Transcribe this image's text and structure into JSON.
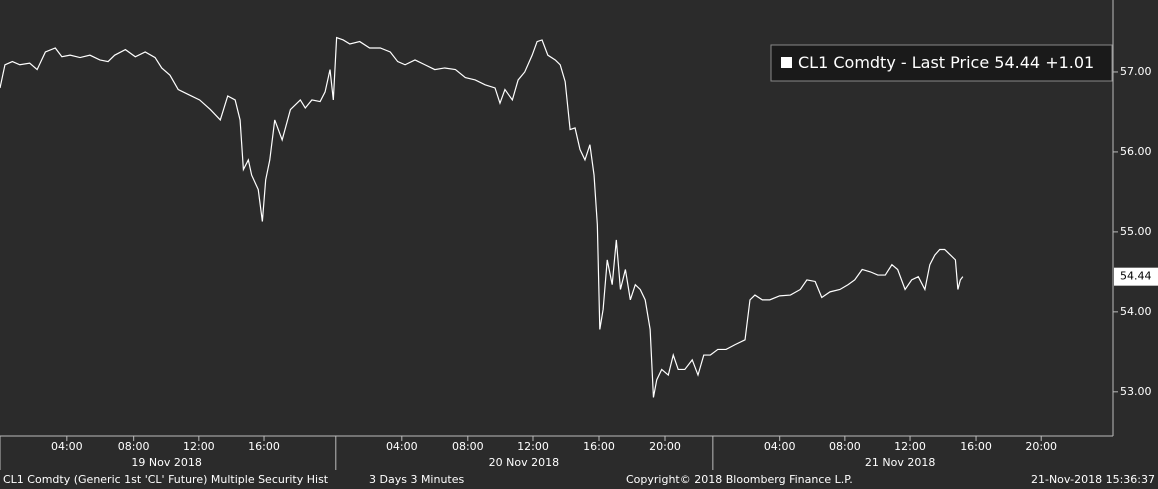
{
  "chart_data": {
    "type": "line",
    "footer_left": "CL1 Comdty (Generic 1st 'CL' Future) Multiple Security Hist",
    "footer_period": "3 Days 3 Minutes",
    "copyright": "Copyright© 2018 Bloomberg Finance L.P.",
    "timestamp": "21-Nov-2018 15:36:37",
    "change": {
      "value": 1.01,
      "label": "+1.01"
    },
    "xlim": [
      0,
      1349
    ],
    "xticks": [
      {
        "value": 81,
        "label": "04:00"
      },
      {
        "value": 162,
        "label": "08:00"
      },
      {
        "value": 241,
        "label": "12:00"
      },
      {
        "value": 320,
        "label": "16:00"
      },
      {
        "value": 487,
        "label": "04:00"
      },
      {
        "value": 567,
        "label": "08:00"
      },
      {
        "value": 646,
        "label": "12:00"
      },
      {
        "value": 726,
        "label": "16:00"
      },
      {
        "value": 806,
        "label": "20:00"
      },
      {
        "value": 945,
        "label": "04:00"
      },
      {
        "value": 1024,
        "label": "08:00"
      },
      {
        "value": 1103,
        "label": "12:00"
      },
      {
        "value": 1183,
        "label": "16:00"
      },
      {
        "value": 1262,
        "label": "20:00"
      }
    ],
    "day_labels": [
      {
        "value": 202,
        "label": "19 Nov 2018"
      },
      {
        "value": 635,
        "label": "20 Nov 2018"
      },
      {
        "value": 1091,
        "label": "21 Nov 2018"
      }
    ],
    "day_boundaries": [
      407,
      864
    ],
    "ylim": [
      52.46,
      57.9
    ],
    "yticks": [
      {
        "value": 53,
        "label": "53.00"
      },
      {
        "value": 54,
        "label": "54.00"
      },
      {
        "value": 55,
        "label": "55.00"
      },
      {
        "value": 56,
        "label": "56.00"
      },
      {
        "value": 57,
        "label": "57.00"
      }
    ],
    "x": [
      0,
      6,
      15,
      24,
      36,
      45,
      55,
      67,
      75,
      85,
      97,
      109,
      121,
      131,
      139,
      152,
      164,
      176,
      188,
      196,
      206,
      216,
      230,
      242,
      255,
      267,
      276,
      285,
      291,
      295,
      301,
      305,
      313,
      318,
      322,
      327,
      333,
      342,
      352,
      364,
      370,
      378,
      388,
      394,
      400,
      404,
      408,
      416,
      424,
      436,
      448,
      461,
      473,
      482,
      491,
      503,
      515,
      527,
      539,
      552,
      564,
      576,
      588,
      600,
      606,
      612,
      621,
      628,
      636,
      645,
      651,
      657,
      664,
      673,
      679,
      685,
      691,
      697,
      703,
      709,
      715,
      720,
      724,
      727,
      731,
      736,
      742,
      747,
      752,
      758,
      764,
      770,
      776,
      782,
      788,
      792,
      796,
      802,
      810,
      816,
      822,
      830,
      839,
      846,
      853,
      861,
      870,
      880,
      891,
      903,
      909,
      915,
      924,
      933,
      945,
      958,
      970,
      978,
      988,
      996,
      1006,
      1018,
      1028,
      1036,
      1045,
      1055,
      1064,
      1073,
      1081,
      1088,
      1097,
      1105,
      1113,
      1121,
      1127,
      1133,
      1139,
      1145,
      1152,
      1158,
      1161,
      1164,
      1167
    ],
    "series": [
      {
        "name": "CL1 Comdty - Last Price",
        "color": "#ffffff",
        "values": [
          56.8,
          57.09,
          57.13,
          57.09,
          57.11,
          57.03,
          57.25,
          57.3,
          57.19,
          57.21,
          57.18,
          57.21,
          57.15,
          57.13,
          57.21,
          57.28,
          57.19,
          57.25,
          57.18,
          57.05,
          56.96,
          56.78,
          56.71,
          56.65,
          56.53,
          56.4,
          56.7,
          56.65,
          56.4,
          55.78,
          55.9,
          55.71,
          55.53,
          55.13,
          55.65,
          55.9,
          56.4,
          56.15,
          56.53,
          56.65,
          56.55,
          56.65,
          56.63,
          56.75,
          57.03,
          56.65,
          57.43,
          57.4,
          57.35,
          57.38,
          57.3,
          57.3,
          57.25,
          57.13,
          57.09,
          57.15,
          57.09,
          57.03,
          57.05,
          57.03,
          56.93,
          56.9,
          56.84,
          56.8,
          56.61,
          56.78,
          56.65,
          56.9,
          57.0,
          57.21,
          57.38,
          57.4,
          57.21,
          57.15,
          57.09,
          56.88,
          56.28,
          56.3,
          56.03,
          55.9,
          56.09,
          55.71,
          55.09,
          53.78,
          54.03,
          54.65,
          54.34,
          54.9,
          54.28,
          54.53,
          54.15,
          54.34,
          54.28,
          54.15,
          53.78,
          52.93,
          53.15,
          53.28,
          53.21,
          53.46,
          53.28,
          53.28,
          53.4,
          53.21,
          53.46,
          53.46,
          53.53,
          53.53,
          53.59,
          53.65,
          54.15,
          54.21,
          54.15,
          54.15,
          54.2,
          54.21,
          54.28,
          54.4,
          54.38,
          54.18,
          54.25,
          54.28,
          54.34,
          54.4,
          54.53,
          54.5,
          54.46,
          54.46,
          54.59,
          54.53,
          54.28,
          54.4,
          54.44,
          54.28,
          54.59,
          54.71,
          54.78,
          54.78,
          54.71,
          54.65,
          54.28,
          54.4,
          54.44
        ]
      }
    ]
  }
}
